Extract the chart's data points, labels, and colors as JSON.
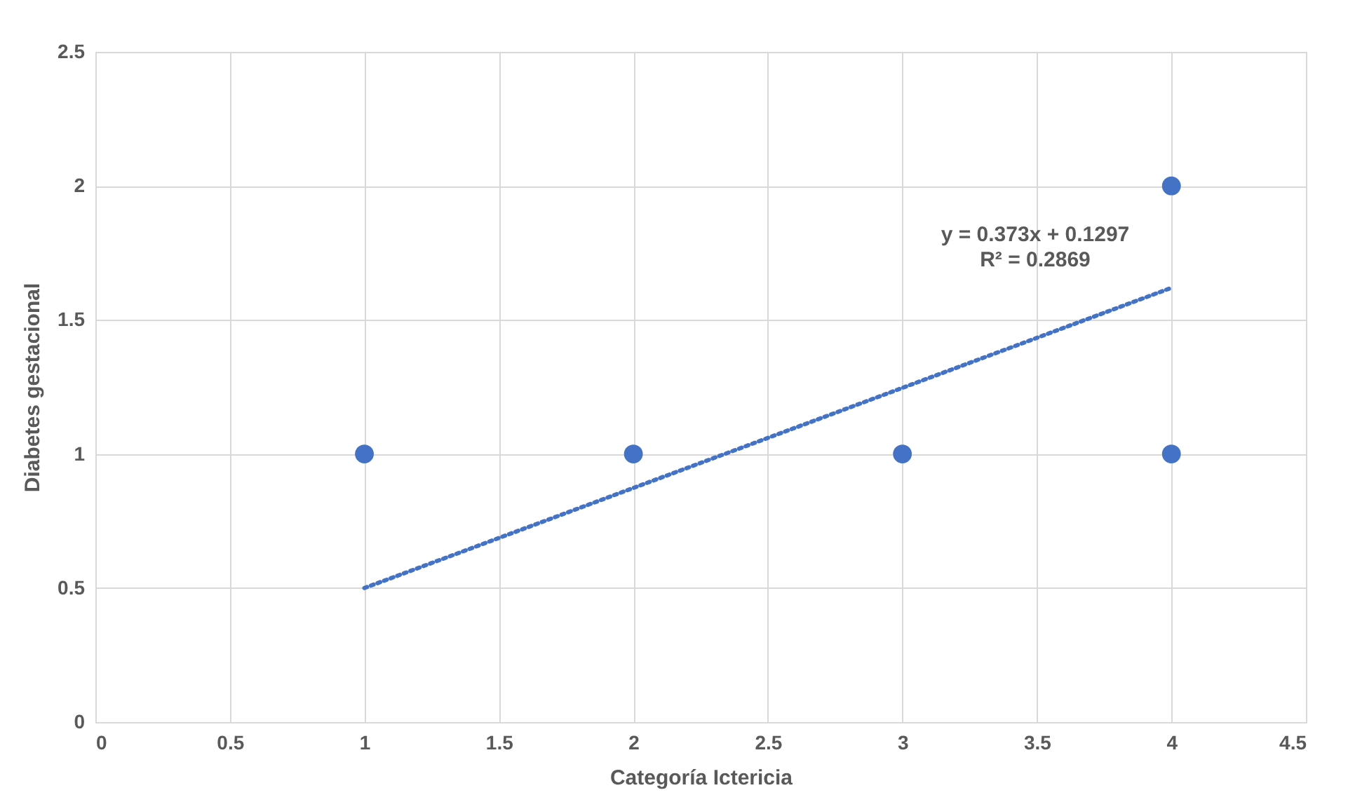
{
  "chart_data": {
    "type": "scatter",
    "xlabel": "Categoría Ictericia",
    "ylabel": "Diabetes gestacional",
    "xlim": [
      0,
      4.5
    ],
    "xticks": [
      0,
      0.5,
      1,
      1.5,
      2,
      2.5,
      3,
      3.5,
      4,
      4.5
    ],
    "ylim": [
      0,
      2.5
    ],
    "yticks": [
      0,
      0.5,
      1,
      1.5,
      2,
      2.5
    ],
    "grid": true,
    "series": [
      {
        "type": "scatter",
        "color": "#4472c4",
        "marker": "circle",
        "x": [
          1,
          2,
          3,
          4,
          4
        ],
        "values": [
          1,
          1,
          1,
          1,
          2
        ]
      },
      {
        "type": "line",
        "color": "#4472c4",
        "marker": "none",
        "line_style": "dotted",
        "x": [
          1,
          4
        ],
        "values": [
          0.5,
          1.62
        ]
      }
    ],
    "annotations": [
      "y = 0.373x + 0.1297",
      "R² = 0.2869"
    ]
  }
}
